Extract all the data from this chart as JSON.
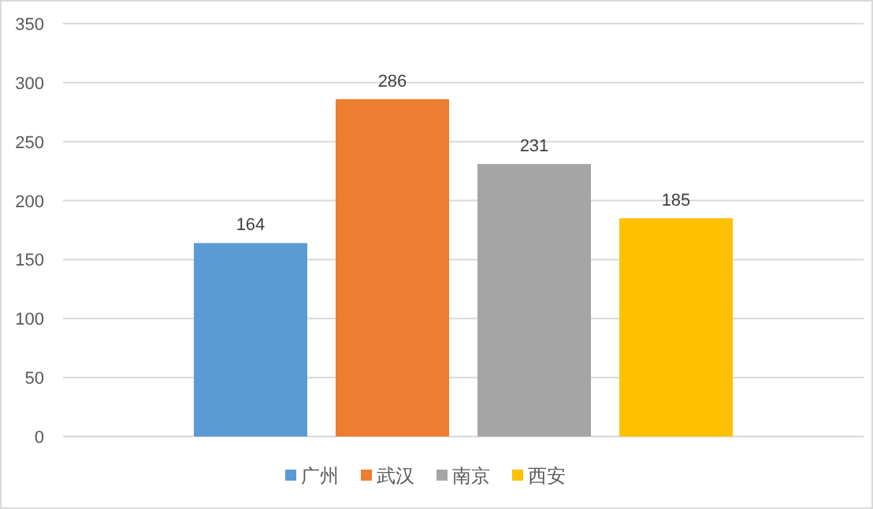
{
  "chart_data": {
    "type": "bar",
    "categories": [
      null
    ],
    "series": [
      {
        "name": "广州",
        "color": "#5b9bd5",
        "values": [
          164
        ]
      },
      {
        "name": "武汉",
        "color": "#ed7d31",
        "values": [
          286
        ]
      },
      {
        "name": "南京",
        "color": "#a5a5a5",
        "values": [
          231
        ]
      },
      {
        "name": "西安",
        "color": "#ffc000",
        "values": [
          185
        ]
      }
    ],
    "ylim": [
      0,
      350
    ],
    "yticks": [
      0,
      50,
      100,
      150,
      200,
      250,
      300,
      350
    ],
    "grid": "y",
    "legend": "bottom",
    "data_labels": true
  }
}
